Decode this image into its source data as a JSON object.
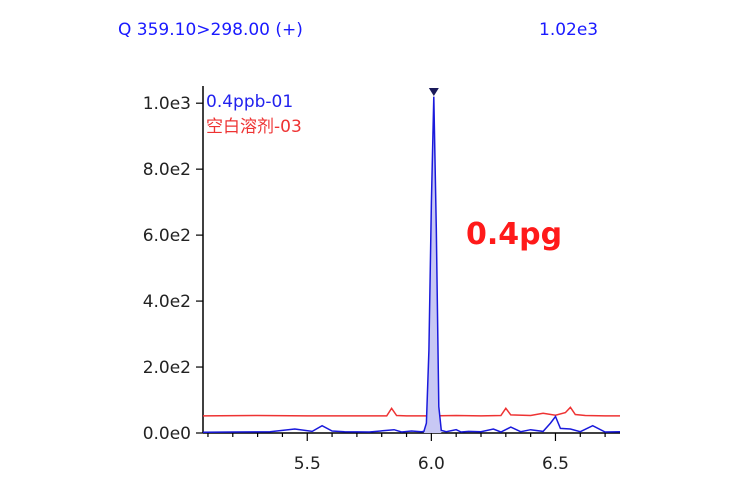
{
  "header": {
    "left": "Q 359.10>298.00 (+)",
    "right": "1.02e3"
  },
  "chart_data": {
    "type": "line",
    "xlabel": "",
    "ylabel": "",
    "xlim": [
      5.08,
      6.76
    ],
    "ylim": [
      0,
      1040
    ],
    "x_ticks": [
      5.5,
      6.0,
      6.5
    ],
    "x_tick_labels": [
      "5.5",
      "6.0",
      "6.5"
    ],
    "y_ticks": [
      0,
      200,
      400,
      600,
      800,
      1000
    ],
    "y_tick_labels": [
      "0.0e0",
      "2.0e2",
      "4.0e2",
      "6.0e2",
      "8.0e2",
      "1.0e3"
    ],
    "grid": false,
    "legend_placement": "top-left",
    "series": [
      {
        "name": "0.4ppb-01",
        "color": "#1a1adc",
        "fill_peak": true,
        "x": [
          5.08,
          5.2,
          5.35,
          5.45,
          5.52,
          5.56,
          5.6,
          5.65,
          5.75,
          5.85,
          5.88,
          5.92,
          5.96,
          5.97,
          5.98,
          5.99,
          6.0,
          6.01,
          6.02,
          6.03,
          6.04,
          6.06,
          6.1,
          6.12,
          6.15,
          6.2,
          6.25,
          6.28,
          6.32,
          6.36,
          6.4,
          6.45,
          6.48,
          6.5,
          6.52,
          6.56,
          6.6,
          6.65,
          6.7,
          6.76
        ],
        "y": [
          2,
          3,
          4,
          12,
          5,
          22,
          6,
          4,
          3,
          10,
          3,
          6,
          4,
          5,
          30,
          250,
          700,
          1020,
          620,
          80,
          8,
          4,
          10,
          3,
          5,
          4,
          12,
          3,
          18,
          4,
          10,
          5,
          30,
          50,
          14,
          12,
          4,
          22,
          3,
          4
        ]
      },
      {
        "name": "空白溶剂-03",
        "color": "#ee3333",
        "fill_peak": false,
        "x": [
          5.08,
          5.3,
          5.5,
          5.7,
          5.82,
          5.84,
          5.86,
          5.9,
          6.0,
          6.1,
          6.2,
          6.28,
          6.3,
          6.32,
          6.4,
          6.45,
          6.5,
          6.54,
          6.56,
          6.58,
          6.62,
          6.7,
          6.76
        ],
        "y": [
          52,
          53,
          52,
          52,
          52,
          75,
          53,
          52,
          52,
          53,
          52,
          53,
          75,
          55,
          53,
          60,
          54,
          62,
          78,
          56,
          53,
          52,
          52
        ]
      }
    ],
    "annotations": [
      {
        "text": "0.4pg",
        "color": "#ff1a1a"
      }
    ],
    "peak_marker": {
      "x": 6.01,
      "shape": "down-triangle"
    }
  }
}
